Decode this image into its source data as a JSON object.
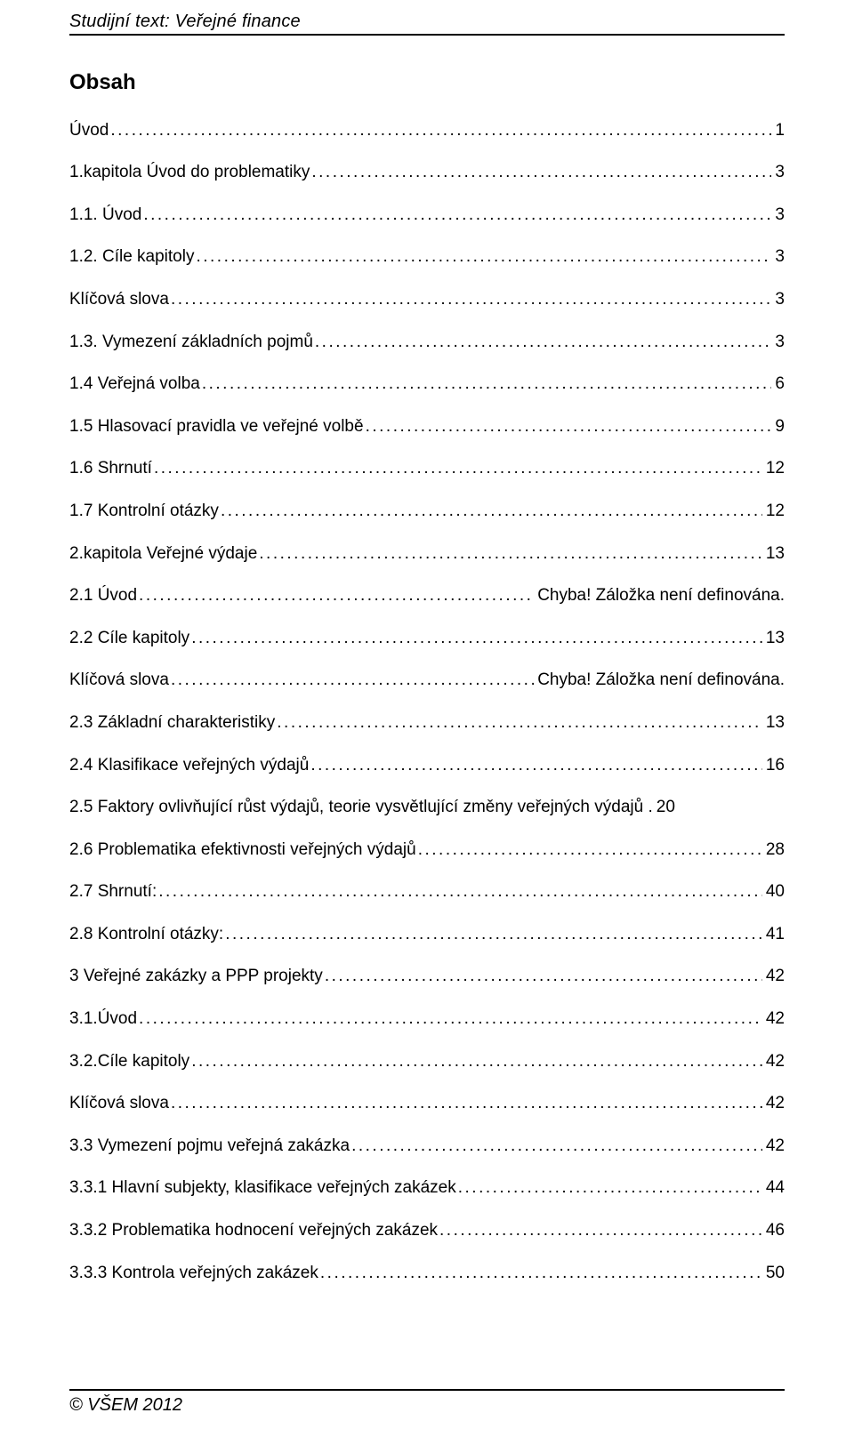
{
  "header": {
    "title": "Studijní text: Veřejné finance"
  },
  "toc_heading": "Obsah",
  "toc": [
    {
      "label": "Úvod",
      "page": "1"
    },
    {
      "label": "1.kapitola Úvod do problematiky",
      "page": "3"
    },
    {
      "label": "1.1. Úvod",
      "page": "3"
    },
    {
      "label": "1.2. Cíle kapitoly",
      "page": "3"
    },
    {
      "label": "Klíčová slova",
      "page": "3"
    },
    {
      "label": "1.3. Vymezení základních pojmů",
      "page": "3"
    },
    {
      "label": "1.4 Veřejná volba",
      "page": "6"
    },
    {
      "label": "1.5 Hlasovací pravidla ve veřejné volbě",
      "page": "9"
    },
    {
      "label": "1.6 Shrnutí",
      "page": "12"
    },
    {
      "label": "1.7 Kontrolní otázky",
      "page": "12"
    },
    {
      "label": "2.kapitola Veřejné výdaje",
      "page": "13"
    },
    {
      "label": "2.1 Úvod",
      "page": "Chyba! Záložka není definována."
    },
    {
      "label": "2.2 Cíle kapitoly",
      "page": "13"
    },
    {
      "label": "Klíčová slova",
      "page": "Chyba! Záložka není definována."
    },
    {
      "label": "2.3 Základní charakteristiky",
      "page": "13"
    },
    {
      "label": "2.4 Klasifikace veřejných výdajů",
      "page": "16"
    },
    {
      "label": "2.5 Faktory ovlivňující růst výdajů, teorie vysvětlující změny veřejných výdajů .",
      "page": "20",
      "no_leader": true
    },
    {
      "label": "2.6 Problematika efektivnosti veřejných výdajů",
      "page": "28"
    },
    {
      "label": "2.7 Shrnutí:",
      "page": "40"
    },
    {
      "label": "2.8 Kontrolní otázky:",
      "page": "41"
    },
    {
      "label": "3 Veřejné zakázky a PPP projekty",
      "page": "42"
    },
    {
      "label": "3.1.Úvod",
      "page": "42"
    },
    {
      "label": "3.2.Cíle kapitoly",
      "page": "42"
    },
    {
      "label": "Klíčová slova",
      "page": "42"
    },
    {
      "label": "3.3 Vymezení pojmu veřejná zakázka",
      "page": "42"
    },
    {
      "label": "3.3.1 Hlavní subjekty, klasifikace veřejných zakázek",
      "page": "44"
    },
    {
      "label": "3.3.2 Problematika hodnocení veřejných zakázek",
      "page": "46"
    },
    {
      "label": "3.3.3 Kontrola veřejných zakázek",
      "page": "50"
    }
  ],
  "footer": {
    "text": "© VŠEM 2012"
  }
}
